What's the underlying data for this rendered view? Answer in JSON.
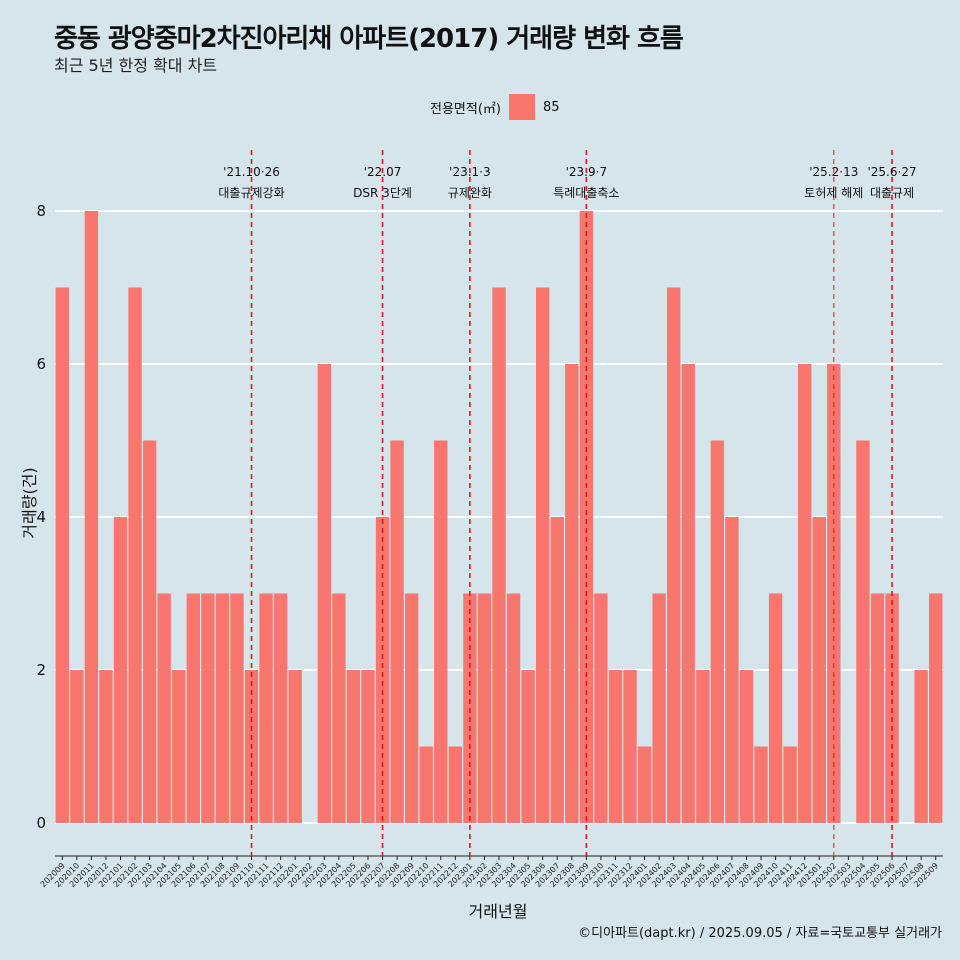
{
  "header": {
    "title": "중동 광양중마2차진아리채 아파트(2017) 거래량 변화 흐름",
    "subtitle": "최근 5년 한정 확대 차트"
  },
  "legend": {
    "title": "전용면적(㎡)",
    "item": "85",
    "color": "#f8766d"
  },
  "footer": {
    "caption": "©디아파트(dapt.kr) / 2025.09.05 / 자료=국토교통부 실거래가"
  },
  "chart_data": {
    "type": "bar",
    "xlabel": "거래년월",
    "ylabel": "거래량(건)",
    "ylim": [
      0,
      8
    ],
    "yticks": [
      0,
      2,
      4,
      6,
      8
    ],
    "grid": true,
    "legend_position": "top",
    "categories": [
      "202009",
      "202010",
      "202011",
      "202012",
      "202101",
      "202102",
      "202103",
      "202104",
      "202105",
      "202106",
      "202107",
      "202108",
      "202109",
      "202110",
      "202111",
      "202112",
      "202201",
      "202202",
      "202203",
      "202204",
      "202205",
      "202206",
      "202207",
      "202208",
      "202209",
      "202210",
      "202211",
      "202212",
      "202301",
      "202302",
      "202303",
      "202304",
      "202305",
      "202306",
      "202307",
      "202308",
      "202309",
      "202310",
      "202311",
      "202312",
      "202401",
      "202402",
      "202403",
      "202404",
      "202405",
      "202406",
      "202407",
      "202408",
      "202409",
      "202410",
      "202411",
      "202412",
      "202501",
      "202502",
      "202503",
      "202504",
      "202505",
      "202506",
      "202507",
      "202508",
      "202509"
    ],
    "series": [
      {
        "name": "85",
        "color": "#f8766d",
        "values": [
          7,
          2,
          8,
          2,
          4,
          7,
          5,
          3,
          2,
          3,
          3,
          3,
          3,
          2,
          3,
          3,
          2,
          0,
          6,
          3,
          2,
          2,
          4,
          5,
          3,
          1,
          5,
          1,
          3,
          3,
          7,
          3,
          2,
          7,
          4,
          6,
          8,
          3,
          2,
          2,
          1,
          3,
          7,
          6,
          2,
          5,
          4,
          2,
          1,
          3,
          1,
          6,
          4,
          6,
          0,
          5,
          3,
          3,
          0,
          2,
          3
        ]
      }
    ],
    "annotations": [
      {
        "category": "202110",
        "date": "'21.10·26",
        "label": "대출규제강화"
      },
      {
        "category": "202207",
        "date": "'22.07",
        "label": "DSR 3단계"
      },
      {
        "category": "202301",
        "date": "'23.1·3",
        "label": "규제완화"
      },
      {
        "category": "202309",
        "date": "'23.9·7",
        "label": "특례대출축소"
      },
      {
        "category": "202502",
        "date": "'25.2·13",
        "label": "토허제 해제"
      },
      {
        "category": "202506",
        "date": "'25.6·27",
        "label": "대출규제"
      }
    ],
    "annotation_color": "#e8141b"
  }
}
